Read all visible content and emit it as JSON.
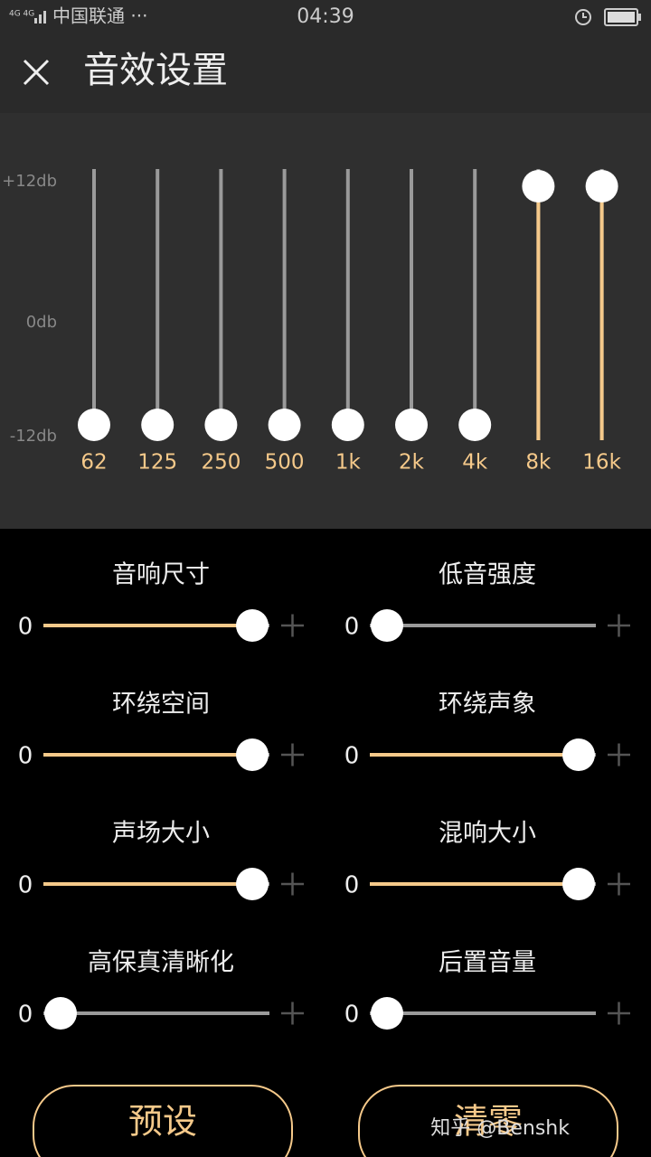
{
  "status_bar": {
    "network": "4G 4G",
    "carrier": "中国联通 ···",
    "time": "04:39"
  },
  "header": {
    "title": "音效设置"
  },
  "equalizer": {
    "scale_labels": [
      "+12db",
      "0db",
      "-12db"
    ],
    "bands": [
      "62",
      "125",
      "250",
      "500",
      "1k",
      "2k",
      "4k",
      "8k",
      "16k"
    ]
  },
  "controls": [
    {
      "label": "音响尺寸",
      "value": 0
    },
    {
      "label": "低音强度",
      "value": 0
    },
    {
      "label": "环绕空间",
      "value": 0
    },
    {
      "label": "环绕声象",
      "value": 0
    },
    {
      "label": "声场大小",
      "value": 0
    },
    {
      "label": "混响大小",
      "value": 0
    },
    {
      "label": "高保真清晰化",
      "value": 0
    },
    {
      "label": "后置音量",
      "value": 0
    }
  ],
  "buttons": [
    "预设",
    "清零"
  ],
  "watermark": "知乎 @Benshk"
}
